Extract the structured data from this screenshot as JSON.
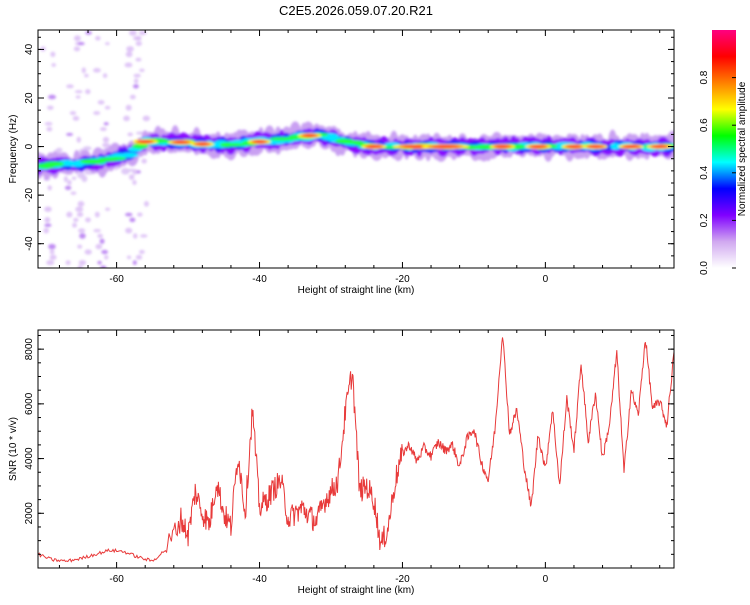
{
  "page_title": "C2E5.2026.059.07.20.R21",
  "colors": {
    "snr_line": "#e83a3a",
    "frame": "#000000"
  },
  "chart_data": [
    {
      "type": "heatmap",
      "xlabel": "Height of straight line (km)",
      "ylabel": "Frequency (Hz)",
      "xlim": [
        -71,
        18
      ],
      "ylim": [
        -50,
        48
      ],
      "x_ticks": [
        -60,
        -40,
        -20,
        0
      ],
      "y_ticks": [
        -40,
        -20,
        0,
        20,
        40
      ],
      "colorbar": {
        "label": "Normalized spectral amplitude",
        "range": [
          0,
          1
        ],
        "ticks": [
          0.0,
          0.2,
          0.4,
          0.6,
          0.8
        ],
        "colors": [
          "#ffffff",
          "#d0a8f0",
          "#8000ff",
          "#0000ff",
          "#00ffff",
          "#00ff00",
          "#ffff00",
          "#ff8000",
          "#ff0000",
          "#ff0080"
        ]
      },
      "ridge": {
        "x": [
          -71,
          -66,
          -62,
          -58,
          -56,
          -52,
          -48,
          -44,
          -40,
          -36,
          -32,
          -28,
          -24,
          -20,
          -16,
          -12,
          -8,
          -4,
          0,
          4,
          8,
          12,
          16,
          18
        ],
        "y": [
          -8,
          -7,
          -6,
          -3,
          2,
          2,
          1,
          1,
          2,
          3,
          5,
          2,
          0,
          0,
          0,
          0,
          0,
          0,
          0,
          0,
          0,
          0,
          0,
          0
        ]
      },
      "streaks_x": [
        -69.5,
        -66,
        -64.5,
        -62,
        -58,
        -56.5
      ]
    },
    {
      "type": "line",
      "xlabel": "Height of straight line (km)",
      "ylabel": "SNR (10 * v/v)",
      "xlim": [
        -71,
        18
      ],
      "ylim": [
        0,
        8700
      ],
      "x_ticks": [
        -60,
        -40,
        -20,
        0
      ],
      "y_ticks": [
        2000,
        4000,
        6000,
        8000
      ],
      "series": [
        {
          "x": [
            -71,
            -69,
            -67,
            -65,
            -63,
            -61,
            -59,
            -57,
            -55,
            -53,
            -51,
            -50,
            -49,
            -48,
            -47,
            -46,
            -45,
            -44,
            -43,
            -42,
            -41,
            -40,
            -39,
            -38,
            -37,
            -36,
            -35,
            -34,
            -33,
            -32,
            -31,
            -30,
            -29,
            -28,
            -27,
            -26,
            -25,
            -24,
            -23,
            -22,
            -21,
            -20,
            -19,
            -18,
            -17,
            -16,
            -15,
            -14,
            -13,
            -12,
            -11,
            -10,
            -9,
            -8,
            -7,
            -6,
            -5,
            -4,
            -3,
            -2,
            -1,
            0,
            1,
            2,
            3,
            4,
            5,
            6,
            7,
            8,
            9,
            10,
            11,
            12,
            13,
            14,
            15,
            16,
            17,
            18
          ],
          "y": [
            500,
            300,
            250,
            350,
            500,
            650,
            600,
            400,
            250,
            700,
            1800,
            1200,
            2800,
            2000,
            1600,
            3200,
            2000,
            1500,
            4200,
            2000,
            5800,
            2200,
            2500,
            2900,
            3200,
            1800,
            2000,
            2200,
            1900,
            1700,
            2400,
            2800,
            3200,
            5700,
            7200,
            2800,
            3000,
            2500,
            800,
            1500,
            3200,
            4200,
            4500,
            3900,
            4400,
            4100,
            4600,
            4300,
            4500,
            3700,
            4700,
            5100,
            3900,
            3200,
            5200,
            8600,
            4900,
            5800,
            3800,
            2200,
            4900,
            3600,
            5800,
            3000,
            6200,
            4300,
            7500,
            4600,
            6400,
            4000,
            5300,
            7900,
            3500,
            6500,
            5600,
            8400,
            5800,
            6100,
            5200,
            7900
          ]
        }
      ]
    }
  ]
}
